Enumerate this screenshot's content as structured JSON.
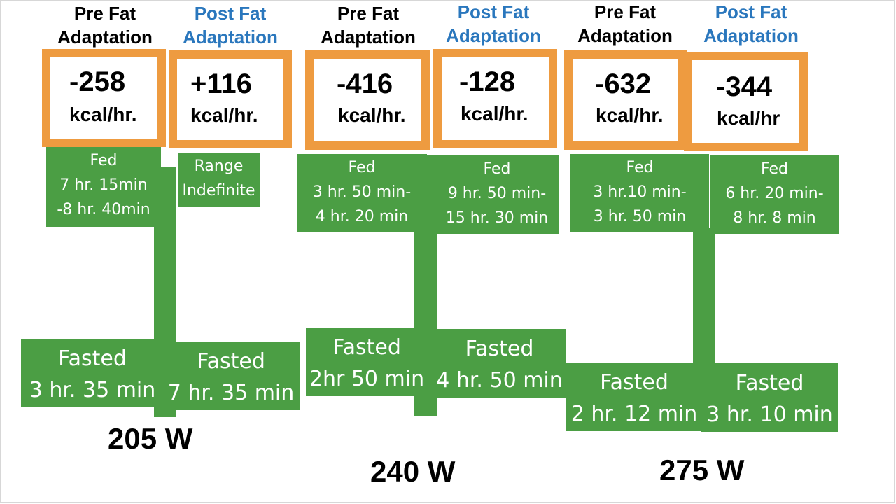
{
  "headers": {
    "pre_fat": "Pre Fat\nAdaptation",
    "post_fat": "Post Fat\nAdaptation"
  },
  "groups": [
    {
      "watts": "205 W",
      "pre": {
        "kcal": "-258",
        "unit": "kcal/hr.",
        "fed": "Fed\n7 hr. 15min\n-8 hr. 40min",
        "fasted": "Fasted\n3 hr. 35 min"
      },
      "post": {
        "kcal": "+116",
        "unit": "kcal/hr.",
        "fed": "Range\nIndefinite",
        "fasted": "Fasted\n7 hr. 35 min"
      }
    },
    {
      "watts": "240 W",
      "pre": {
        "kcal": "-416",
        "unit": "kcal/hr.",
        "fed": "Fed\n3 hr. 50 min-\n4 hr. 20 min",
        "fasted": "Fasted\n2hr 50 min"
      },
      "post": {
        "kcal": "-128",
        "unit": "kcal/hr.",
        "fed": "Fed\n9 hr. 50 min-\n15 hr. 30 min",
        "fasted": "Fasted\n4 hr. 50 min"
      }
    },
    {
      "watts": "275 W",
      "pre": {
        "kcal": "-632",
        "unit": "kcal/hr.",
        "fed": "Fed\n3 hr.10 min-\n3 hr. 50 min",
        "fasted": "Fasted\n2 hr. 12 min"
      },
      "post": {
        "kcal": "-344",
        "unit": "kcal/hr",
        "fed": "Fed\n6 hr. 20 min-\n8 hr. 8 min",
        "fasted": "Fasted\n3 hr. 10 min"
      }
    }
  ],
  "colors": {
    "orange_border": "#ee9b40",
    "green_box": "#4b9e44",
    "post_header_blue": "#2a77bd"
  }
}
